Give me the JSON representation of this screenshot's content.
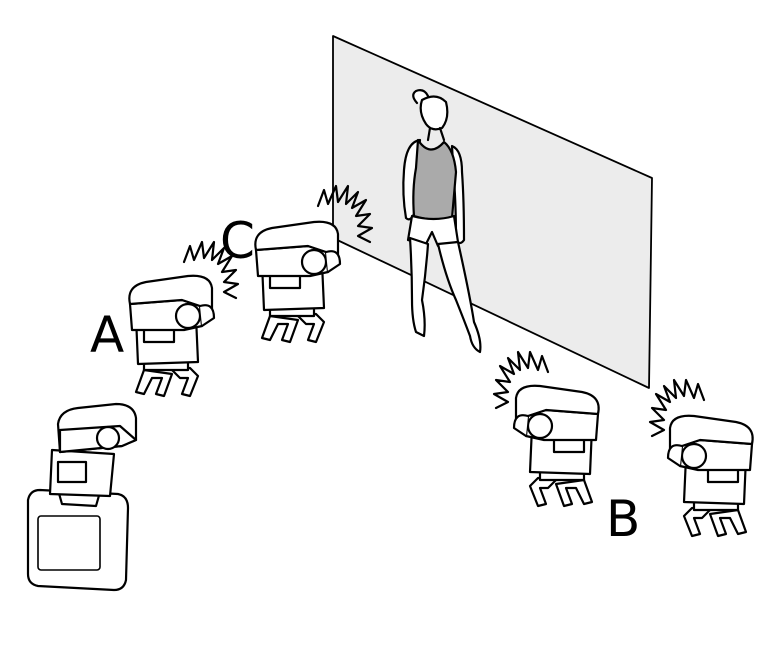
{
  "labels": {
    "a": "A",
    "b": "B",
    "c": "C"
  },
  "colors": {
    "backdrop": "#ececec",
    "outline": "#000000",
    "fill": "#ffffff",
    "tank_top": "#aaaaaa"
  },
  "icons": {
    "flash": "speedlight-flash-icon",
    "camera": "camera-icon",
    "model": "person-silhouette",
    "burst": "flash-burst-icon"
  }
}
